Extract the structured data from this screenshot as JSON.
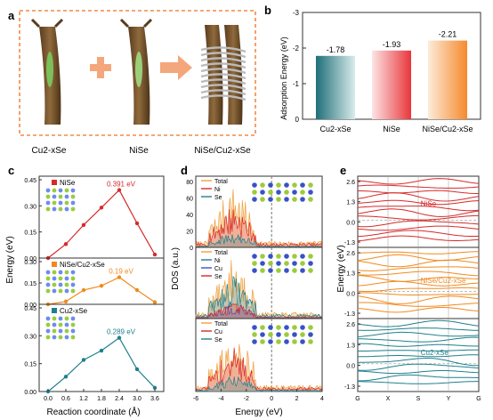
{
  "panels": {
    "a": {
      "letter": "a",
      "labels": [
        "Cu2-xSe",
        "NiSe",
        "NiSe/Cu2-xSe"
      ]
    },
    "b": {
      "letter": "b"
    },
    "c": {
      "letter": "c"
    },
    "d": {
      "letter": "d"
    },
    "e": {
      "letter": "e"
    }
  },
  "colors": {
    "red": "#d62a2a",
    "orange": "#f08a1e",
    "teal": "#1f7f8c",
    "grey": "#888888",
    "blue": "#3953c4",
    "border": "#f08a4a"
  },
  "chart_data": [
    {
      "id": "b",
      "type": "bar",
      "ylabel": "Adsorption Energy (eV)",
      "ylim": [
        0,
        -3
      ],
      "yticks": [
        "0",
        "-1",
        "-2",
        "-3"
      ],
      "categories": [
        "Cu2-xSe",
        "NiSe",
        "NiSe/Cu2-xSe"
      ],
      "values": [
        -1.78,
        -1.93,
        -2.21
      ],
      "value_labels": [
        "-1.78",
        "-1.93",
        "-2.21"
      ],
      "colors": [
        "#1f6f78",
        "#e8363c",
        "#f58a2c"
      ]
    },
    {
      "id": "c",
      "type": "line",
      "xlabel": "Reaction coordinate (Å)",
      "ylabel": "Energy (eV)",
      "x": [
        0.0,
        0.6,
        1.2,
        1.8,
        2.4,
        3.0,
        3.6
      ],
      "xticks": [
        "0.0",
        "0.6",
        "1.2",
        "1.8",
        "2.4",
        "3.0",
        "3.6"
      ],
      "subplots": [
        {
          "name": "NiSe",
          "color": "#d62a2a",
          "ylim": [
            0,
            0.45
          ],
          "yticks": [
            "0.00",
            "0.15",
            "0.30",
            "0.45"
          ],
          "values": [
            0.0,
            0.08,
            0.19,
            0.29,
            0.391,
            0.2,
            0.02
          ],
          "peak_label": "0.391 eV"
        },
        {
          "name": "NiSe/Cu2-xSe",
          "color": "#f08a1e",
          "ylim": [
            0,
            0.3
          ],
          "yticks": [
            "0.00",
            "0.15",
            "0.30"
          ],
          "values": [
            0.0,
            0.02,
            0.1,
            0.13,
            0.19,
            0.1,
            0.015
          ],
          "peak_label": "0.19 eV"
        },
        {
          "name": "Cu2-xSe",
          "color": "#1f7f8c",
          "ylim": [
            0,
            0.45
          ],
          "yticks": [
            "0.00",
            "0.15",
            "0.30",
            "0.45"
          ],
          "values": [
            0.0,
            0.08,
            0.17,
            0.22,
            0.289,
            0.12,
            0.02
          ],
          "peak_label": "0.289 eV"
        }
      ]
    },
    {
      "id": "d",
      "type": "area",
      "xlabel": "Energy (eV)",
      "ylabel": "DOS (a.u.)",
      "xlim": [
        -6,
        4
      ],
      "xticks": [
        "-6",
        "-4",
        "-2",
        "0",
        "2",
        "4"
      ],
      "subplots": [
        {
          "legend": [
            "Total",
            "Ni",
            "Se"
          ],
          "series_colors": [
            "#f0a040",
            "#d62a2a",
            "#1f7f8c"
          ],
          "yticks": [
            "0",
            "20",
            "40",
            "60",
            "80"
          ]
        },
        {
          "legend": [
            "Total",
            "Ni",
            "Cu",
            "Se"
          ],
          "series_colors": [
            "#f0a040",
            "#1f7f8c",
            "#3953c4",
            "#d62a2a"
          ]
        },
        {
          "legend": [
            "Total",
            "Cu",
            "Se"
          ],
          "series_colors": [
            "#f0a040",
            "#d62a2a",
            "#1f7f8c"
          ]
        }
      ]
    },
    {
      "id": "e",
      "type": "line",
      "ylabel": "Energy (eV)",
      "xticks": [
        "G",
        "X",
        "S",
        "Y",
        "G"
      ],
      "subplots": [
        {
          "name": "NiSe",
          "color": "#d62a2a",
          "yticks": [
            "2.6",
            "1.3",
            "0.0",
            "-1.3"
          ]
        },
        {
          "name": "NiSe/Cu2-xSe",
          "color": "#f08a1e",
          "yticks": [
            "2.6",
            "1.3",
            "0.0",
            "-1.3"
          ]
        },
        {
          "name": "Cu2-xSe",
          "color": "#1f7f8c",
          "yticks": [
            "2.6",
            "1.3",
            "0.0",
            "-1.3"
          ]
        }
      ]
    }
  ]
}
